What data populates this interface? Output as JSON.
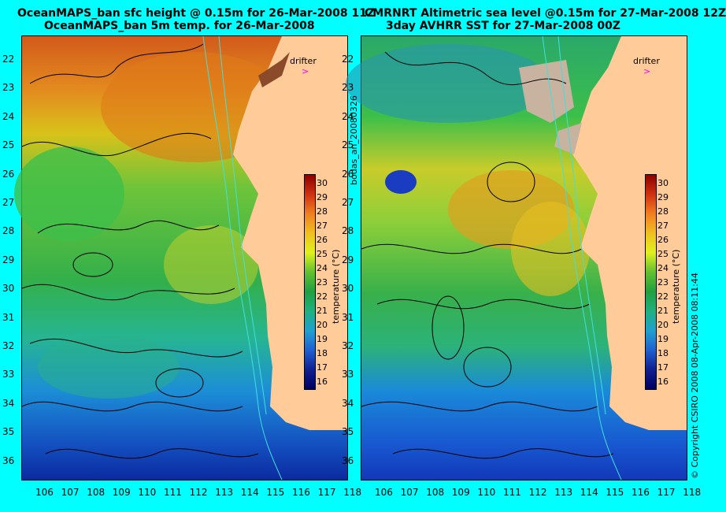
{
  "left": {
    "title_line1": "OceanMAPS_ban sfc height @ 0.15m for 26-Mar-2008 11Z",
    "title_line2": "OceanMAPS_ban 5m temp. for 26-Mar-2008"
  },
  "right": {
    "title_line1": "CMRNRT Altimetric sea level  @0.15m  for 27-Mar-2008 12Z",
    "title_line2": "3day AVHRR SST for 27-Mar-2008 00Z"
  },
  "x_ticks": [
    "106",
    "107",
    "108",
    "109",
    "110",
    "111",
    "112",
    "113",
    "114",
    "115",
    "116",
    "117",
    "118"
  ],
  "y_ticks": [
    "22",
    "23",
    "24",
    "25",
    "26",
    "27",
    "28",
    "29",
    "30",
    "31",
    "32",
    "33",
    "34",
    "35",
    "36"
  ],
  "colorbar": {
    "label": "temperature (°C)",
    "ticks": [
      "30",
      "29",
      "28",
      "27",
      "26",
      "25",
      "24",
      "23",
      "22",
      "21",
      "20",
      "19",
      "18",
      "17",
      "16"
    ]
  },
  "drifter_label": "drifter",
  "side_text_left": "bodas_an_20080326",
  "side_text_right": "© Copyright CSIRO 2008    08-Apr-2008 08:11:44",
  "colors": {
    "background": "#00ffff",
    "land": "#ffcc99",
    "cloud": "#c8b2a0",
    "contour": "#000000",
    "isobath": "#40e0e0",
    "drifter": "#ff00ff"
  }
}
